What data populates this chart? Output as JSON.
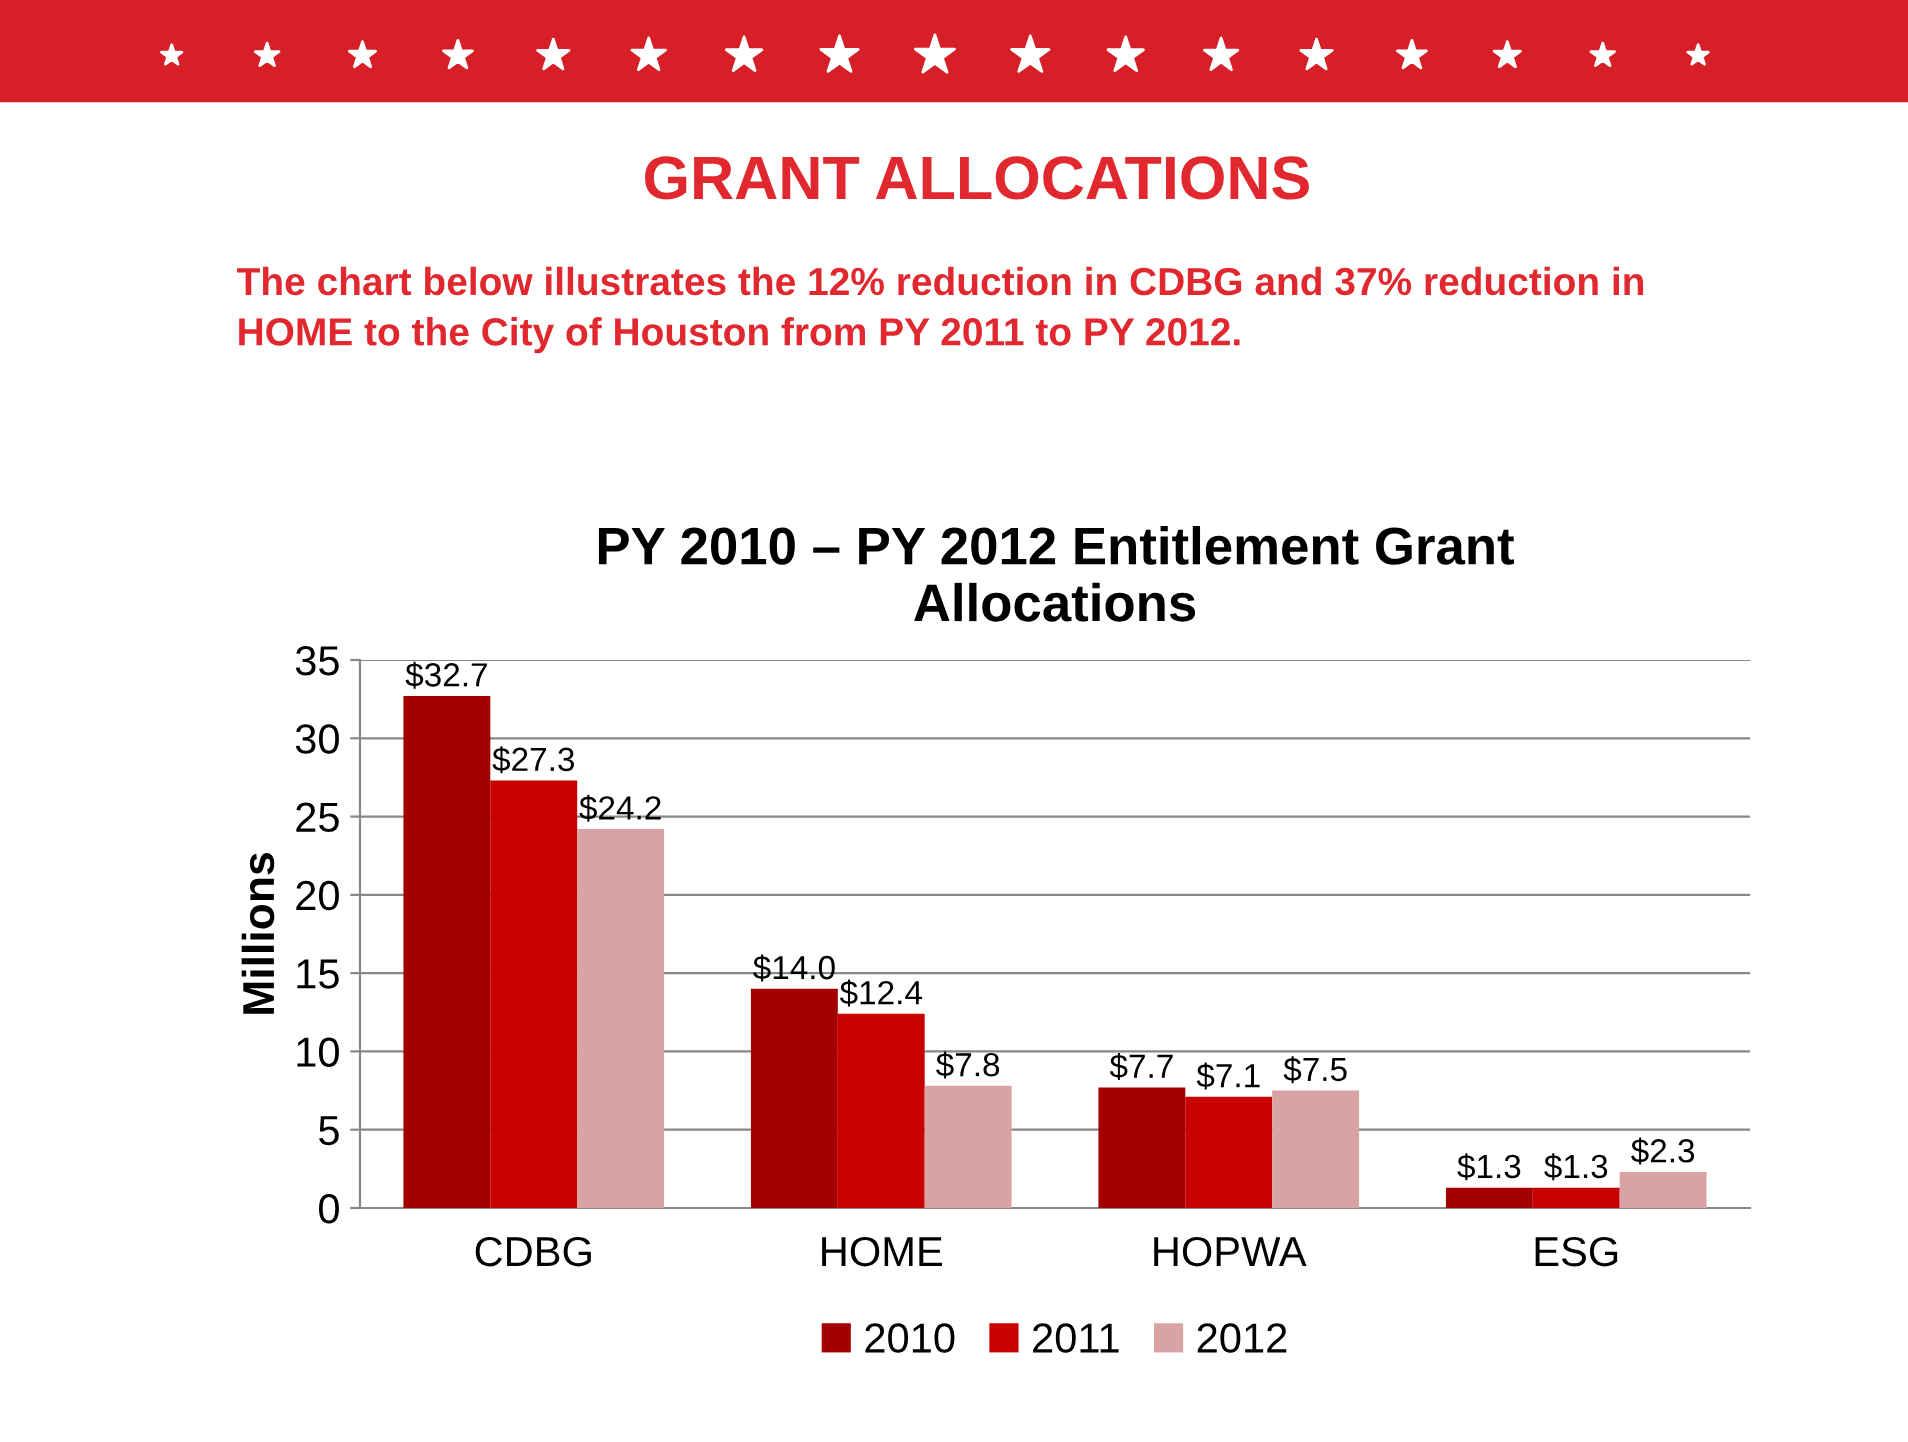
{
  "chart_data": {
    "type": "bar",
    "title": "PY 2010 – PY 2012 Entitlement Grant Allocations",
    "ylabel": "Millions",
    "annotations": [
      "GRANT ALLOCATIONS",
      "The chart below illustrates the 12% reduction in CDBG and 37% reduction in HOME to the City of Houston from PY 2011 to PY 2012."
    ],
    "categories": [
      "CDBG",
      "HOME",
      "HOPWA",
      "ESG"
    ],
    "series": [
      {
        "name": "2010",
        "color": "#a50000",
        "values": [
          32.7,
          14.0,
          7.7,
          1.3
        ],
        "value_labels": [
          "$32.7",
          "$14.0",
          "$7.7",
          "$1.3"
        ]
      },
      {
        "name": "2011",
        "color": "#c80000",
        "values": [
          27.3,
          12.4,
          7.1,
          1.3
        ],
        "value_labels": [
          "$27.3",
          "$12.4",
          "$7.1",
          "$1.3"
        ]
      },
      {
        "name": "2012",
        "color": "#d9a3a3",
        "values": [
          24.2,
          7.8,
          7.5,
          2.3
        ],
        "value_labels": [
          "$24.2",
          "$7.8",
          "$7.5",
          "$2.3"
        ]
      }
    ],
    "ylim": [
      0,
      35
    ],
    "yticks": [
      0,
      5,
      10,
      15,
      20,
      25,
      30,
      35
    ],
    "grid": "y",
    "legend": "bottom"
  }
}
